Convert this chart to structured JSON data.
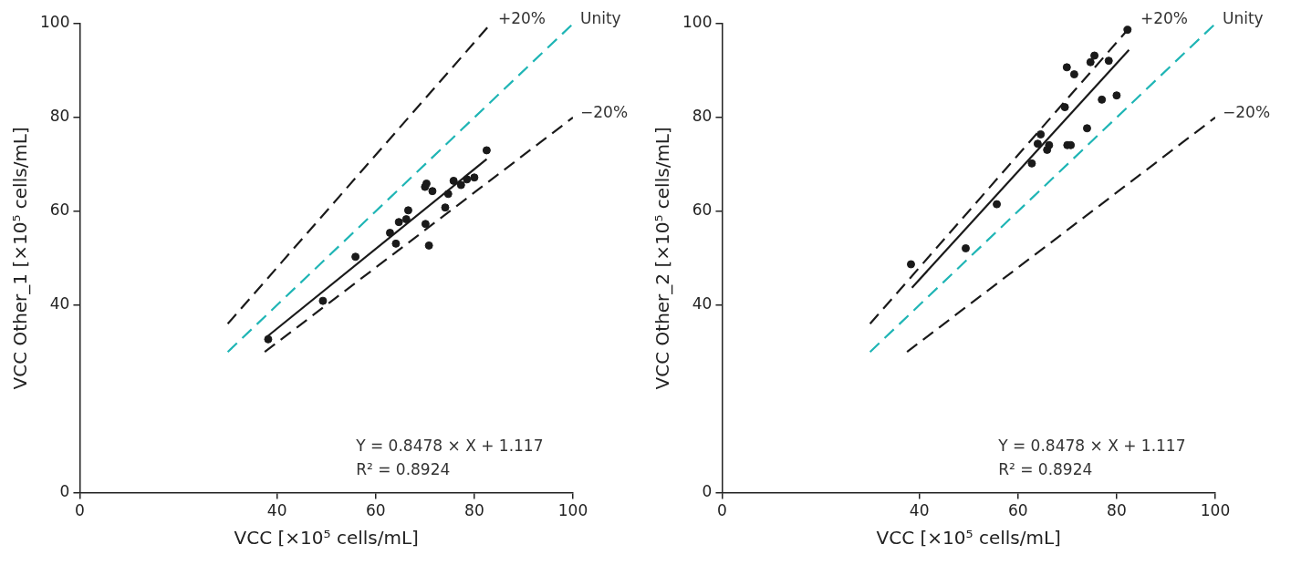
{
  "chart_data": [
    {
      "type": "scatter",
      "xlabel": "VCC [×10⁵ cells/mL]",
      "ylabel": "VCC Other_1 [×10⁵ cells/mL]",
      "xlim": [
        0,
        100
      ],
      "xticks": [
        0,
        40,
        60,
        80,
        100
      ],
      "ylim": [
        0,
        100
      ],
      "yticks": [
        0,
        40,
        60,
        80,
        100
      ],
      "grid": false,
      "annotations": [
        "Y = 0.8478 × X + 1.117",
        "R² = 0.8924"
      ],
      "series": [
        {
          "type": "line",
          "name": "+20%",
          "color": "#1a1a1a",
          "line_style": "dashed",
          "marker": "none",
          "x": [
            30,
            83.33
          ],
          "values": [
            36,
            100
          ]
        },
        {
          "type": "line",
          "name": "Unity",
          "color": "#1fb5b5",
          "line_style": "dashed",
          "marker": "none",
          "x": [
            30,
            100
          ],
          "values": [
            30,
            100
          ]
        },
        {
          "type": "line",
          "name": "−20%",
          "color": "#1a1a1a",
          "line_style": "dashed",
          "marker": "none",
          "x": [
            37.5,
            100
          ],
          "values": [
            30,
            80
          ]
        },
        {
          "type": "line",
          "color": "#1a1a1a",
          "line_style": "solid",
          "marker": "none",
          "x": [
            37.9,
            82.5
          ],
          "values": [
            33.2,
            71.1
          ]
        },
        {
          "color": "#1a1a1a",
          "marker": "circle",
          "x": [
            38.2,
            49.3,
            55.9,
            62.9,
            64.1,
            64.7,
            66.2,
            66.6,
            70.1,
            70.0,
            70.3,
            70.8,
            71.5,
            74.1,
            74.7,
            75.8,
            77.3,
            78.5,
            80.0,
            82.5
          ],
          "values": [
            32.7,
            40.9,
            50.3,
            55.4,
            53.1,
            57.7,
            58.3,
            60.2,
            57.3,
            65.2,
            65.9,
            52.7,
            64.3,
            60.8,
            63.7,
            66.5,
            65.6,
            66.8,
            67.2,
            73.0
          ]
        }
      ]
    },
    {
      "type": "scatter",
      "xlabel": "VCC [×10⁵ cells/mL]",
      "ylabel": "VCC Other_2 [×10⁵ cells/mL]",
      "xlim": [
        0,
        100
      ],
      "xticks": [
        0,
        40,
        60,
        80,
        100
      ],
      "ylim": [
        0,
        100
      ],
      "yticks": [
        0,
        40,
        60,
        80,
        100
      ],
      "grid": false,
      "annotations": [
        "Y = 0.8478 × X + 1.117",
        "R² = 0.8924"
      ],
      "series": [
        {
          "type": "line",
          "name": "+20%",
          "color": "#1a1a1a",
          "line_style": "dashed",
          "marker": "none",
          "x": [
            30,
            83.33
          ],
          "values": [
            36,
            100
          ]
        },
        {
          "type": "line",
          "name": "Unity",
          "color": "#1fb5b5",
          "line_style": "dashed",
          "marker": "none",
          "x": [
            30,
            100
          ],
          "values": [
            30,
            100
          ]
        },
        {
          "type": "line",
          "name": "−20%",
          "color": "#1a1a1a",
          "line_style": "dashed",
          "marker": "none",
          "x": [
            37.5,
            100
          ],
          "values": [
            30,
            80
          ]
        },
        {
          "type": "line",
          "color": "#1a1a1a",
          "line_style": "solid",
          "marker": "none",
          "x": [
            38.5,
            82.5
          ],
          "values": [
            43.7,
            94.4
          ]
        },
        {
          "color": "#1a1a1a",
          "marker": "circle",
          "x": [
            38.3,
            49.4,
            55.7,
            62.8,
            64.0,
            64.6,
            65.9,
            66.3,
            69.5,
            69.9,
            70.0,
            70.7,
            71.4,
            74.0,
            74.7,
            75.5,
            77.0,
            78.4,
            80.0,
            82.2
          ],
          "values": [
            48.7,
            52.1,
            61.5,
            70.2,
            74.4,
            76.4,
            73.1,
            74.1,
            82.2,
            90.7,
            74.1,
            74.1,
            89.2,
            77.7,
            91.8,
            93.2,
            83.8,
            92.1,
            84.7,
            98.7
          ]
        }
      ]
    }
  ]
}
